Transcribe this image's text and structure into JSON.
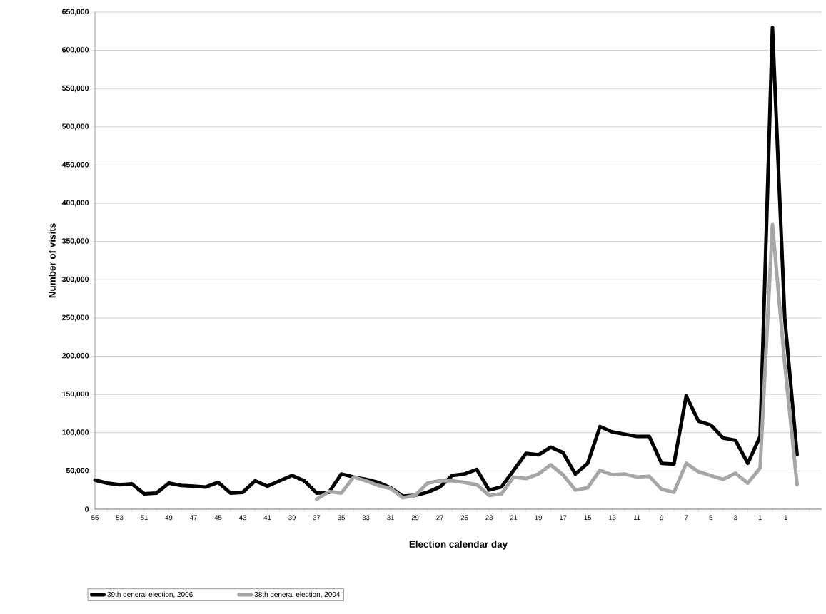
{
  "chart_data": {
    "type": "line",
    "xlabel": "Election calendar day",
    "ylabel": "Number of visits",
    "xlim": [
      55,
      -4
    ],
    "ylim": [
      0,
      650000
    ],
    "xticks": [
      55,
      {
        "value": 54,
        "label": null
      },
      53,
      {
        "value": 52,
        "label": null
      },
      51,
      {
        "value": 50,
        "label": null
      },
      49,
      {
        "value": 48,
        "label": null
      },
      47,
      {
        "value": 46,
        "label": null
      },
      45,
      {
        "value": 44,
        "label": null
      },
      43,
      {
        "value": 42,
        "label": null
      },
      41,
      {
        "value": 40,
        "label": null
      },
      39,
      {
        "value": 38,
        "label": null
      },
      37,
      {
        "value": 36,
        "label": null
      },
      35,
      {
        "value": 34,
        "label": null
      },
      33,
      {
        "value": 32,
        "label": null
      },
      31,
      {
        "value": 30,
        "label": null
      },
      29,
      {
        "value": 28,
        "label": null
      },
      27,
      {
        "value": 26,
        "label": null
      },
      25,
      {
        "value": 24,
        "label": null
      },
      23,
      {
        "value": 22,
        "label": null
      },
      21,
      {
        "value": 20,
        "label": null
      },
      19,
      {
        "value": 18,
        "label": null
      },
      17,
      {
        "value": 16,
        "label": null
      },
      15,
      {
        "value": 14,
        "label": null
      },
      13,
      {
        "value": 12,
        "label": null
      },
      11,
      {
        "value": 10,
        "label": null
      },
      9,
      {
        "value": 8,
        "label": null
      },
      7,
      {
        "value": 6,
        "label": null
      },
      5,
      {
        "value": 4,
        "label": null
      },
      3,
      {
        "value": 2,
        "label": null
      },
      1,
      {
        "value": 0,
        "label": null
      },
      -1,
      {
        "value": -2,
        "label": null
      },
      {
        "value": -3,
        "label": null
      }
    ],
    "yticks": [
      0,
      {
        "value": 50000,
        "label": "50,000"
      },
      {
        "value": 100000,
        "label": "100,000"
      },
      {
        "value": 150000,
        "label": "150,000"
      },
      {
        "value": 200000,
        "label": "200,000"
      },
      {
        "value": 250000,
        "label": "250,000"
      },
      {
        "value": 300000,
        "label": "300,000"
      },
      {
        "value": 350000,
        "label": "350,000"
      },
      {
        "value": 400000,
        "label": "400,000"
      },
      {
        "value": 450000,
        "label": "450,000"
      },
      {
        "value": 500000,
        "label": "500,000"
      },
      {
        "value": 550000,
        "label": "550,000"
      },
      {
        "value": 600000,
        "label": "600,000"
      },
      {
        "value": 650000,
        "label": "650,000"
      }
    ],
    "grid": "y",
    "legend": "bottom",
    "series": [
      {
        "name": "39th general election, 2006",
        "color": "#000000",
        "x": [
          55,
          54,
          53,
          52,
          51,
          50,
          49,
          48,
          47,
          46,
          45,
          44,
          43,
          42,
          41,
          40,
          39,
          38,
          37,
          36,
          35,
          34,
          33,
          32,
          31,
          30,
          29,
          28,
          27,
          26,
          25,
          24,
          23,
          22,
          21,
          20,
          19,
          18,
          17,
          16,
          15,
          14,
          13,
          12,
          11,
          10,
          9,
          8,
          7,
          6,
          5,
          4,
          3,
          2,
          1,
          0,
          -1,
          -2
        ],
        "values": [
          38000,
          34000,
          32000,
          33000,
          20000,
          21000,
          34000,
          31000,
          30000,
          29000,
          35000,
          21000,
          22000,
          37000,
          30000,
          37000,
          44000,
          37000,
          21000,
          22000,
          46000,
          42000,
          39000,
          35000,
          28000,
          17000,
          18000,
          22000,
          29000,
          44000,
          46000,
          52000,
          25000,
          29000,
          51000,
          73000,
          71000,
          81000,
          74000,
          46000,
          60000,
          108000,
          101000,
          98000,
          95000,
          95000,
          60000,
          59000,
          148000,
          115000,
          110000,
          93000,
          90000,
          60000,
          95000,
          630000,
          250000,
          71000
        ]
      },
      {
        "name": "38th general election, 2004",
        "color": "#a6a6a6",
        "x": [
          37,
          36,
          35,
          34,
          33,
          32,
          31,
          30,
          29,
          28,
          27,
          26,
          25,
          24,
          23,
          22,
          21,
          20,
          19,
          18,
          17,
          16,
          15,
          14,
          13,
          12,
          11,
          10,
          9,
          8,
          7,
          6,
          5,
          4,
          3,
          2,
          1,
          0,
          -1,
          -2
        ],
        "values": [
          13000,
          23000,
          21000,
          42000,
          37000,
          31000,
          27000,
          15000,
          18000,
          34000,
          37000,
          37000,
          35000,
          32000,
          18000,
          20000,
          42000,
          40000,
          46000,
          58000,
          45000,
          25000,
          28000,
          51000,
          45000,
          46000,
          42000,
          43000,
          26000,
          22000,
          60000,
          49000,
          44000,
          39000,
          47000,
          34000,
          54000,
          372000,
          190000,
          32000
        ]
      }
    ]
  }
}
